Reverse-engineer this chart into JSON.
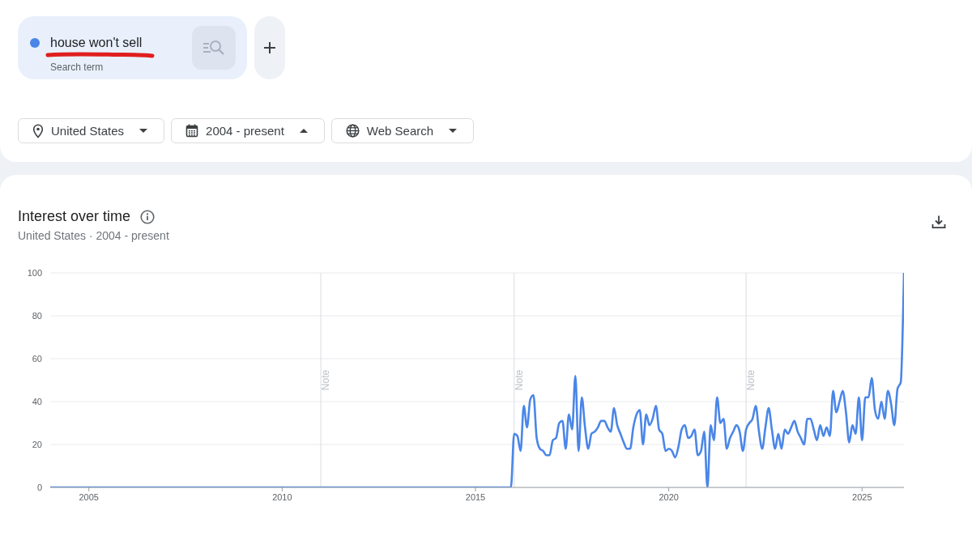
{
  "chart_data": {
    "type": "line",
    "title": "Interest over time",
    "subtitle": "United States · 2004 - present",
    "annotations": [
      "Search term",
      "United States",
      "2004 - present",
      "Web Search"
    ],
    "x": [
      "2004-01",
      "2015-12",
      "2016-01",
      "2016-02",
      "2016-03",
      "2016-04",
      "2016-05",
      "2016-06",
      "2016-07",
      "2016-08",
      "2016-09",
      "2016-10",
      "2016-11",
      "2016-12",
      "2017-01",
      "2017-02",
      "2017-03",
      "2017-04",
      "2017-05",
      "2017-06",
      "2017-07",
      "2017-08",
      "2017-09",
      "2017-10",
      "2017-11",
      "2017-12",
      "2018-01",
      "2018-02",
      "2018-03",
      "2018-04",
      "2018-05",
      "2018-06",
      "2018-07",
      "2018-08",
      "2018-09",
      "2018-10",
      "2018-11",
      "2018-12",
      "2019-01",
      "2019-02",
      "2019-03",
      "2019-04",
      "2019-05",
      "2019-06",
      "2019-07",
      "2019-08",
      "2019-09",
      "2019-10",
      "2019-11",
      "2019-12",
      "2020-01",
      "2020-02",
      "2020-03",
      "2020-04",
      "2020-05",
      "2020-06",
      "2020-07",
      "2020-08",
      "2020-09",
      "2020-10",
      "2020-11",
      "2020-12",
      "2021-01",
      "2021-02",
      "2021-03",
      "2021-04",
      "2021-05",
      "2021-06",
      "2021-07",
      "2021-08",
      "2021-09",
      "2021-10",
      "2021-11",
      "2021-12",
      "2022-01",
      "2022-02",
      "2022-03",
      "2022-04",
      "2022-05",
      "2022-06",
      "2022-07",
      "2022-08",
      "2022-09",
      "2022-10",
      "2022-11",
      "2022-12",
      "2023-01",
      "2023-02",
      "2023-03",
      "2023-04",
      "2023-05",
      "2023-06",
      "2023-07",
      "2023-08",
      "2023-09",
      "2023-10",
      "2023-11",
      "2023-12",
      "2024-01",
      "2024-02",
      "2024-03",
      "2024-04",
      "2024-05",
      "2024-06",
      "2024-07",
      "2024-08",
      "2024-09",
      "2024-10",
      "2024-11",
      "2024-12",
      "2025-01",
      "2025-02",
      "2025-03",
      "2025-04",
      "2025-05",
      "2025-06",
      "2025-07",
      "2025-08",
      "2025-09",
      "2025-10",
      "2025-11",
      "2025-12",
      "2026-01",
      "2026-02"
    ],
    "series": [
      {
        "name": "house won't sell",
        "color": "#4a86e8",
        "values": [
          0,
          0,
          25,
          24,
          17,
          38,
          28,
          41,
          43,
          23,
          18,
          17,
          15,
          15,
          22,
          23,
          30,
          31,
          18,
          34,
          27,
          52,
          17,
          42,
          28,
          18,
          25,
          26,
          28,
          31,
          31,
          28,
          26,
          37,
          29,
          25,
          21,
          18,
          18,
          28,
          34,
          36,
          20,
          34,
          29,
          32,
          38,
          27,
          25,
          17,
          18,
          17,
          14,
          19,
          27,
          29,
          23,
          24,
          27,
          15,
          17,
          26,
          0,
          29,
          22,
          42,
          30,
          32,
          18,
          23,
          26,
          29,
          26,
          17,
          27,
          30,
          32,
          38,
          26,
          18,
          28,
          37,
          27,
          18,
          25,
          18,
          27,
          25,
          28,
          31,
          26,
          23,
          20,
          32,
          32,
          27,
          22,
          29,
          24,
          28,
          24,
          45,
          35,
          40,
          45,
          35,
          21,
          29,
          25,
          42,
          22,
          42,
          42,
          51,
          36,
          32,
          40,
          32,
          45,
          39,
          29,
          46,
          49,
          100
        ]
      }
    ],
    "xlim": [
      "2004-01",
      "2026-02"
    ],
    "xticks": [
      "2005",
      "2010",
      "2015",
      "2020",
      "2025"
    ],
    "ylim": [
      0,
      100
    ],
    "yticks": [
      0,
      20,
      40,
      60,
      80,
      100
    ],
    "grid": "y",
    "legend": "top left",
    "ref_lines": [
      {
        "axis": "x",
        "value": "2011-01",
        "label": "Note"
      },
      {
        "axis": "x",
        "value": "2016-01",
        "label": "Note"
      },
      {
        "axis": "x",
        "value": "2022-01",
        "label": "Note"
      }
    ]
  }
}
